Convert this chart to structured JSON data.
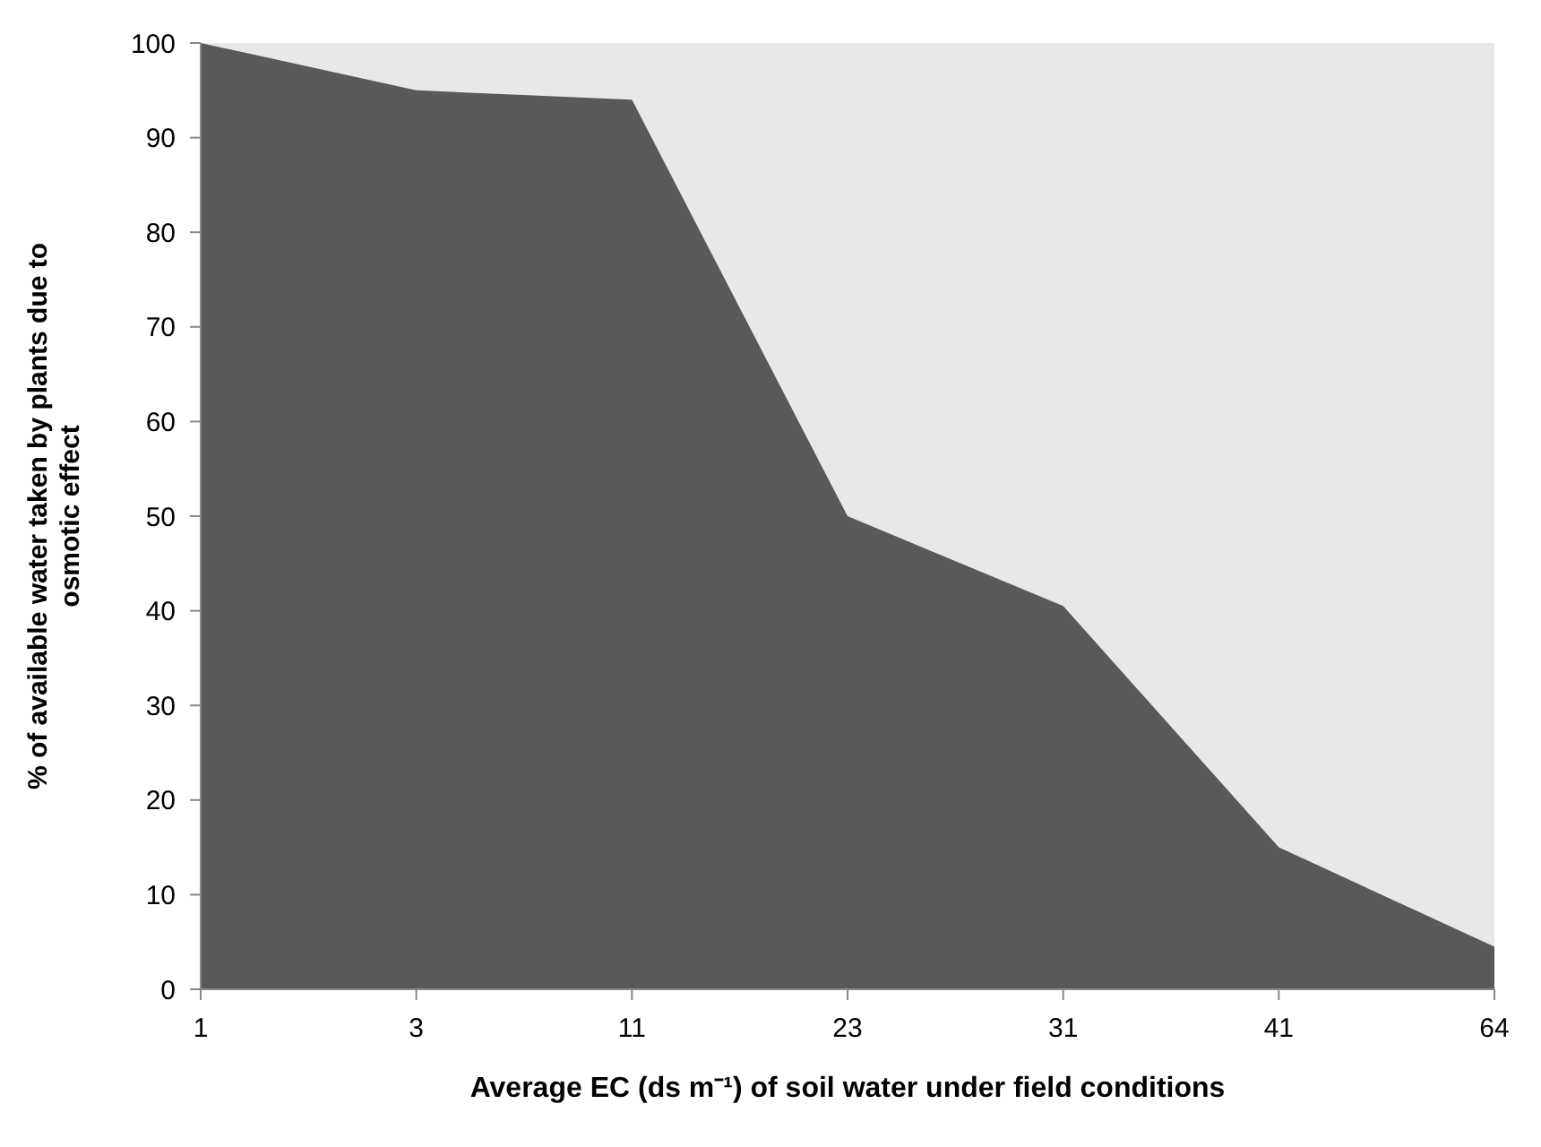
{
  "chart_data": {
    "type": "area",
    "xlabel": "Average EC (ds m⁻¹) of soil water under field conditions",
    "ylabel": "% of available water taken by plants due to osmotic effect",
    "categories": [
      "1",
      "3",
      "11",
      "23",
      "31",
      "41",
      "64"
    ],
    "series": [
      {
        "color": "#595959",
        "values": [
          100,
          95,
          94,
          50,
          40.5,
          15,
          4.5
        ]
      }
    ],
    "ylim": [
      0,
      100
    ],
    "yticks": [
      0,
      10,
      20,
      30,
      40,
      50,
      60,
      70,
      80,
      90,
      100
    ],
    "grid": false,
    "legend": false
  }
}
